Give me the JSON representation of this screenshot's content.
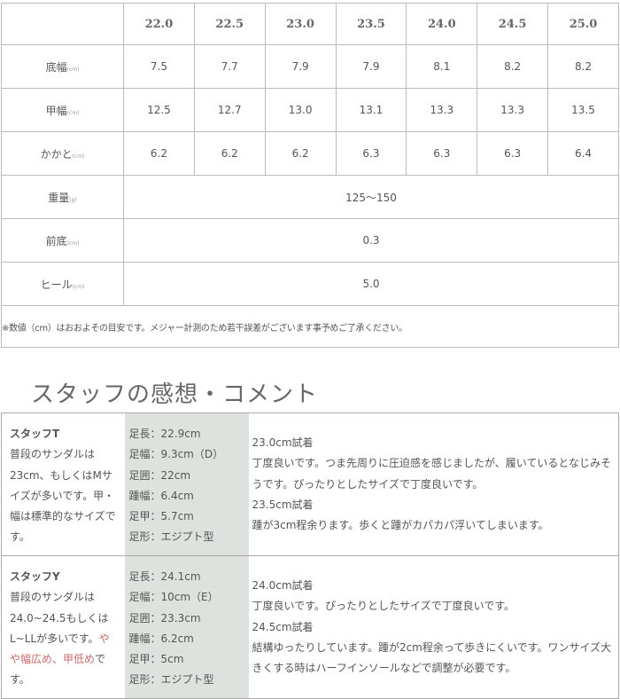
{
  "size_table": {
    "sizes": [
      "22.0",
      "22.5",
      "23.0",
      "23.5",
      "24.0",
      "24.5",
      "25.0"
    ],
    "rows": [
      {
        "label": "底幅",
        "unit": "(cm)",
        "values": [
          "7.5",
          "7.7",
          "7.9",
          "7.9",
          "8.1",
          "8.2",
          "8.2"
        ]
      },
      {
        "label": "甲幅",
        "unit": "(cm)",
        "values": [
          "12.5",
          "12.7",
          "13.0",
          "13.1",
          "13.3",
          "13.3",
          "13.5"
        ]
      },
      {
        "label": "かかと",
        "unit": "(cm)",
        "values": [
          "6.2",
          "6.2",
          "6.2",
          "6.3",
          "6.3",
          "6.3",
          "6.4"
        ]
      }
    ],
    "merged_rows": [
      {
        "label": "重量",
        "unit": "(g)",
        "value": "125～150"
      },
      {
        "label": "前底",
        "unit": "(cm)",
        "value": "0.3"
      },
      {
        "label": "ヒール",
        "unit": "(cm)",
        "value": "5.0"
      }
    ],
    "note": "※数値（cm）はおおよその目安です。メジャー計測のため若干誤差がございます事予めご了承ください。"
  },
  "section_title": "スタッフの感想・コメント",
  "staff": [
    {
      "name": "スタッフT",
      "desc": "普段のサンダルは23cm、もしくはMサイズが多いです。甲・幅は標準的なサイズです。",
      "desc_red": "",
      "desc_after": "",
      "measures": [
        "足長：22.9cm",
        "足幅：9.3cm（D）",
        "足囲：22cm",
        "踵幅：6.4cm",
        "足甲：5.7cm",
        "足形：エジプト型"
      ],
      "comments": [
        "23.0cm試着",
        "丁度良いです。つま先周りに圧迫感を感じましたが、履いているとなじみそうです。ぴったりとしたサイズで丁度良いです。",
        "23.5cm試着",
        "踵が3cm程余ります。歩くと踵がカパカパ浮いてしまいます。"
      ]
    },
    {
      "name": "スタッフY",
      "desc": "普段のサンダルは24.0~24.5もしくはL~LLが多いです。",
      "desc_red": "やや幅広め、甲低め",
      "desc_after": "です。",
      "measures": [
        "足長：24.1cm",
        "足幅：10cm（E）",
        "足囲：23.3cm",
        "踵幅：6.2cm",
        "足甲：5cm",
        "足形：エジプト型"
      ],
      "comments": [
        "24.0cm試着",
        "丁度良いです。ぴったりとしたサイズで丁度良いです。",
        "24.5cm試着",
        "結構ゆったりしています。踵が2cm程余って歩きにくいです。ワンサイズ大きくする時はハーフインソールなどで調整が必要です。"
      ]
    }
  ],
  "colors": {
    "accent_red": "#c96a6a",
    "measure_bg": "#dde2df"
  }
}
